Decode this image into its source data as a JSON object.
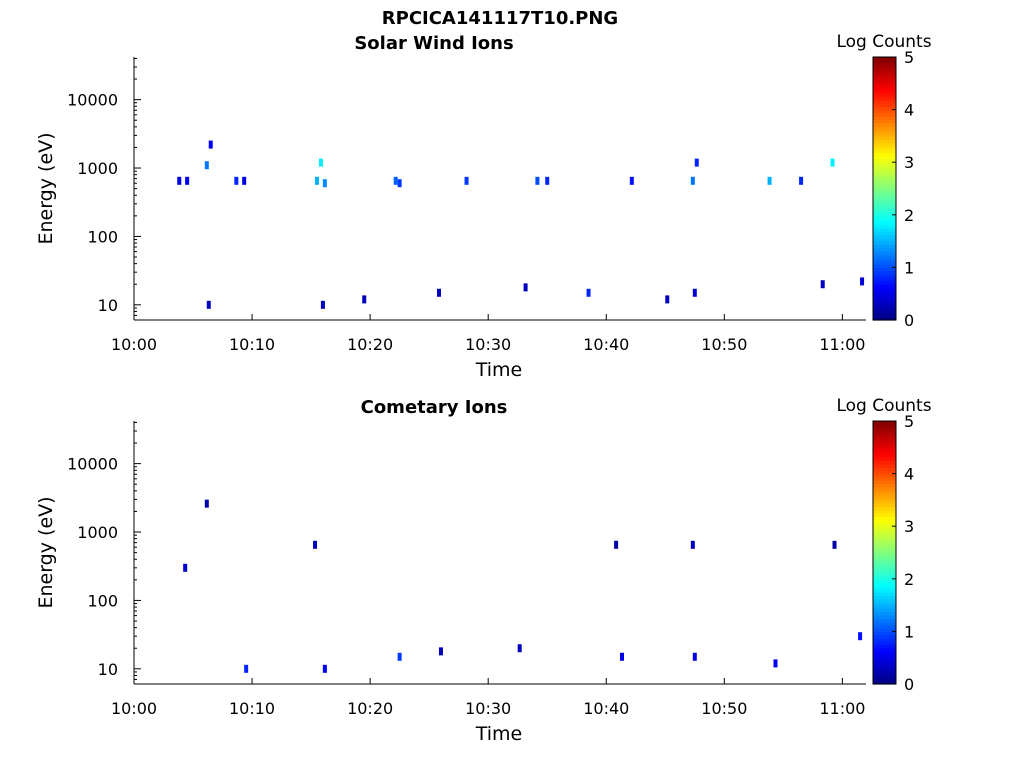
{
  "figure": {
    "title": "RPCICA141117T10.PNG"
  },
  "chart_data": [
    {
      "type": "heatmap",
      "title": "Solar Wind Ions",
      "xlabel": "Time",
      "ylabel": "Energy (eV)",
      "x_range": [
        "10:00",
        "11:02"
      ],
      "y_range": [
        6,
        42000
      ],
      "y_scale": "log",
      "x_ticks": [
        "10:00",
        "10:10",
        "10:20",
        "10:30",
        "10:40",
        "10:50",
        "11:00"
      ],
      "y_ticks": [
        "10",
        "100",
        "1000",
        "10000"
      ],
      "colorbar": {
        "label": "Log Counts",
        "min": 0,
        "max": 5,
        "ticks": [
          "0",
          "1",
          "2",
          "3",
          "4",
          "5"
        ],
        "colormap": "jet"
      },
      "grid": false,
      "cells": [
        {
          "t": "10:03:50",
          "e": 650,
          "v": 0.5
        },
        {
          "t": "10:04:30",
          "e": 650,
          "v": 0.6
        },
        {
          "t": "10:06:10",
          "e": 1100,
          "v": 1.2
        },
        {
          "t": "10:06:30",
          "e": 2200,
          "v": 0.6
        },
        {
          "t": "10:08:40",
          "e": 650,
          "v": 0.8
        },
        {
          "t": "10:09:20",
          "e": 650,
          "v": 0.5
        },
        {
          "t": "10:15:30",
          "e": 650,
          "v": 1.5
        },
        {
          "t": "10:15:50",
          "e": 1200,
          "v": 1.8
        },
        {
          "t": "10:16:10",
          "e": 600,
          "v": 1.3
        },
        {
          "t": "10:22:10",
          "e": 650,
          "v": 1.1
        },
        {
          "t": "10:22:30",
          "e": 600,
          "v": 0.9
        },
        {
          "t": "10:28:10",
          "e": 650,
          "v": 0.9
        },
        {
          "t": "10:34:10",
          "e": 650,
          "v": 1.0
        },
        {
          "t": "10:35:00",
          "e": 650,
          "v": 0.8
        },
        {
          "t": "10:42:10",
          "e": 650,
          "v": 0.7
        },
        {
          "t": "10:47:20",
          "e": 650,
          "v": 1.2
        },
        {
          "t": "10:47:40",
          "e": 1200,
          "v": 0.8
        },
        {
          "t": "10:53:50",
          "e": 650,
          "v": 1.5
        },
        {
          "t": "10:56:30",
          "e": 650,
          "v": 0.8
        },
        {
          "t": "10:59:10",
          "e": 1200,
          "v": 1.8
        },
        {
          "t": "10:06:20",
          "e": 10,
          "v": 0.3
        },
        {
          "t": "10:16:00",
          "e": 10,
          "v": 0.3
        },
        {
          "t": "10:19:30",
          "e": 12,
          "v": 0.3
        },
        {
          "t": "10:25:50",
          "e": 15,
          "v": 0.3
        },
        {
          "t": "10:33:10",
          "e": 18,
          "v": 0.3
        },
        {
          "t": "10:38:30",
          "e": 15,
          "v": 0.8
        },
        {
          "t": "10:45:10",
          "e": 12,
          "v": 0.3
        },
        {
          "t": "10:47:30",
          "e": 15,
          "v": 0.4
        },
        {
          "t": "10:58:20",
          "e": 20,
          "v": 0.3
        },
        {
          "t": "11:01:40",
          "e": 22,
          "v": 0.4
        }
      ]
    },
    {
      "type": "heatmap",
      "title": "Cometary Ions",
      "xlabel": "Time",
      "ylabel": "Energy (eV)",
      "x_range": [
        "10:00",
        "11:02"
      ],
      "y_range": [
        6,
        42000
      ],
      "y_scale": "log",
      "x_ticks": [
        "10:00",
        "10:10",
        "10:20",
        "10:30",
        "10:40",
        "10:50",
        "11:00"
      ],
      "y_ticks": [
        "10",
        "100",
        "1000",
        "10000"
      ],
      "colorbar": {
        "label": "Log Counts",
        "min": 0,
        "max": 5,
        "ticks": [
          "0",
          "1",
          "2",
          "3",
          "4",
          "5"
        ],
        "colormap": "jet"
      },
      "grid": false,
      "cells": [
        {
          "t": "10:04:20",
          "e": 300,
          "v": 0.4
        },
        {
          "t": "10:06:10",
          "e": 2600,
          "v": 0.2
        },
        {
          "t": "10:15:20",
          "e": 650,
          "v": 0.3
        },
        {
          "t": "10:40:50",
          "e": 650,
          "v": 0.2
        },
        {
          "t": "10:47:20",
          "e": 650,
          "v": 0.3
        },
        {
          "t": "10:59:20",
          "e": 650,
          "v": 0.2
        },
        {
          "t": "10:09:30",
          "e": 10,
          "v": 0.8
        },
        {
          "t": "10:16:10",
          "e": 10,
          "v": 0.6
        },
        {
          "t": "10:22:30",
          "e": 15,
          "v": 0.9
        },
        {
          "t": "10:26:00",
          "e": 18,
          "v": 0.3
        },
        {
          "t": "10:32:40",
          "e": 20,
          "v": 0.3
        },
        {
          "t": "10:41:20",
          "e": 15,
          "v": 0.5
        },
        {
          "t": "10:47:30",
          "e": 15,
          "v": 0.5
        },
        {
          "t": "10:54:20",
          "e": 12,
          "v": 0.6
        },
        {
          "t": "11:01:30",
          "e": 30,
          "v": 0.7
        }
      ]
    }
  ]
}
